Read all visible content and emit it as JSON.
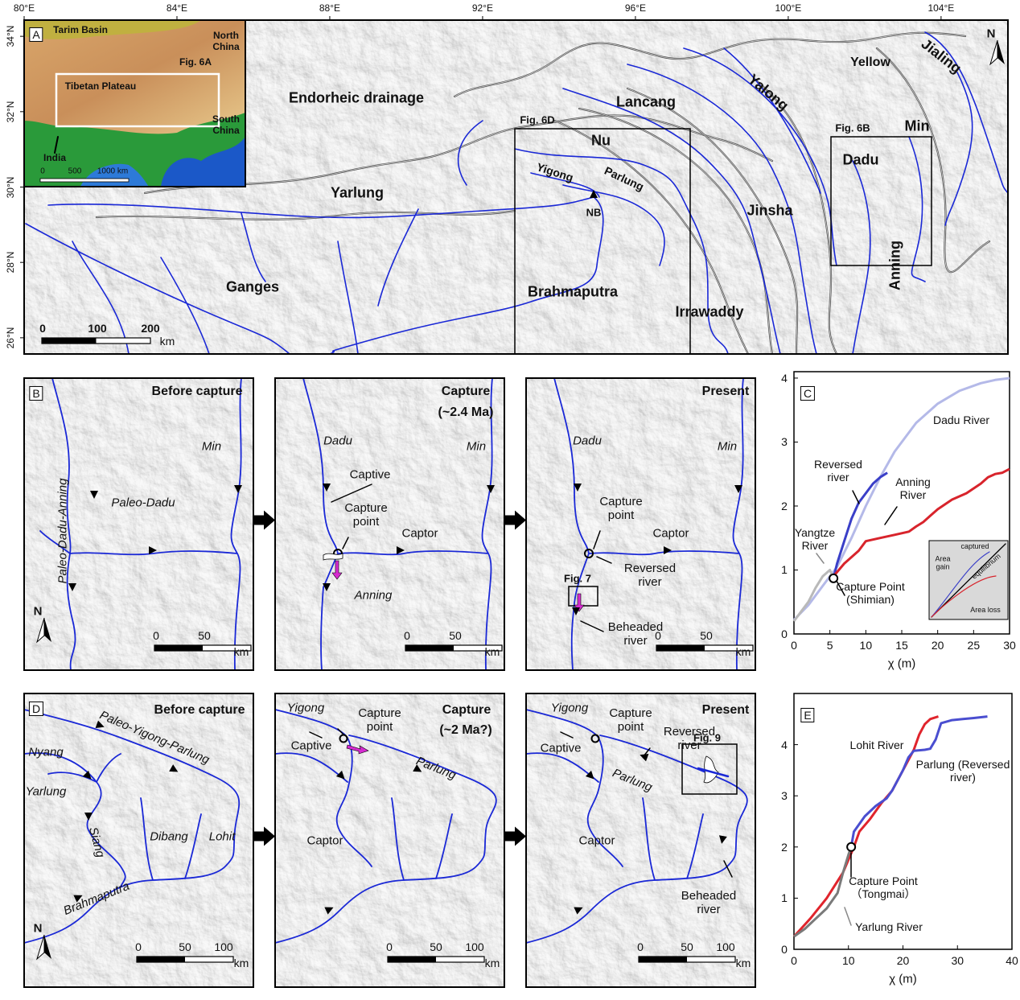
{
  "maps": {
    "A": {
      "letter": "A",
      "north": "N",
      "xlim": [
        80,
        105.75
      ],
      "xticks": [
        {
          "value": 80,
          "label": "80°E"
        },
        {
          "value": 84,
          "label": "84°E"
        },
        {
          "value": 88,
          "label": "88°E"
        },
        {
          "value": 92,
          "label": "92°E"
        },
        {
          "value": 96,
          "label": "96°E"
        },
        {
          "value": 100,
          "label": "100°E"
        },
        {
          "value": 104,
          "label": "104°E"
        }
      ],
      "ylim": [
        25.57,
        34.43
      ],
      "yticks": [
        {
          "value": 26,
          "label": "26°N"
        },
        {
          "value": 28,
          "label": "28°N"
        },
        {
          "value": 30,
          "label": "30°N"
        },
        {
          "value": 32,
          "label": "32°N"
        },
        {
          "value": 34,
          "label": "34°N"
        }
      ],
      "labels": [
        "Endorheic drainage",
        "Lancang",
        "Yellow",
        "Jialing",
        "Yalong",
        "Min",
        "Fig. 6D",
        "Nu",
        "Yigong",
        "Parlung",
        "Fig. 6B",
        "Dadu",
        "Yarlung",
        "NB",
        "Jinsha",
        "Anning",
        "Ganges",
        "Brahmaputra",
        "Irrawaddy"
      ],
      "scale": [
        "0",
        "100",
        "200",
        "km"
      ],
      "inset": {
        "labels": [
          "Tarim Basin",
          "North China",
          "Fig. 6A",
          "Tibetan Plateau",
          "South China",
          "India"
        ],
        "scale": [
          "0",
          "500",
          "1000 km"
        ]
      }
    },
    "B": {
      "letter": "B",
      "north": "N",
      "panels": [
        {
          "labels": [
            "Before capture",
            "Min",
            "Paleo-Dadu-Anning",
            "Paleo-Dadu"
          ],
          "scale": [
            "0",
            "50",
            "km"
          ]
        },
        {
          "labels": [
            "Capture",
            "(~2.4 Ma)",
            "Dadu",
            "Min",
            "Captive",
            "Capture point",
            "Captor",
            "Anning"
          ],
          "scale": [
            "0",
            "50",
            "km"
          ]
        },
        {
          "labels": [
            "Present",
            "Dadu",
            "Min",
            "Capture point",
            "Captor",
            "Reversed river",
            "Fig. 7",
            "Beheaded river"
          ],
          "scale": [
            "0",
            "50",
            "km"
          ]
        }
      ]
    },
    "D": {
      "letter": "D",
      "north": "N",
      "panels": [
        {
          "labels": [
            "Before capture",
            "Paleo-Yigong-Parlung",
            "Nyang",
            "Yarlung",
            "Siang",
            "Dibang",
            "Lohit",
            "Brahmaputra"
          ],
          "scale": [
            "0",
            "50",
            "100",
            "km"
          ]
        },
        {
          "labels": [
            "Capture",
            "(~2 Ma?)",
            "Yigong",
            "Capture point",
            "Captive",
            "Parlung",
            "Captor"
          ],
          "scale": [
            "0",
            "50",
            "100",
            "km"
          ]
        },
        {
          "labels": [
            "Present",
            "Yigong",
            "Capture point",
            "Captive",
            "Reversed river",
            "Parlung",
            "Fig. 9",
            "Captor",
            "Beheaded river"
          ],
          "scale": [
            "0",
            "50",
            "100",
            "km"
          ]
        }
      ]
    }
  },
  "chart_data": [
    {
      "type": "line",
      "letter": "C",
      "x_label": "χ (m)",
      "xlim": [
        0,
        30
      ],
      "xticks": [
        0,
        5,
        10,
        15,
        20,
        25,
        30
      ],
      "ylim": [
        0,
        4.1
      ],
      "yticks": [
        0,
        1,
        2,
        3,
        4
      ],
      "series": [
        {
          "name": "Dadu River",
          "color": "#b4b9e8",
          "x": [
            0,
            2,
            4,
            6,
            8,
            10,
            12,
            14,
            17,
            20,
            23,
            26,
            28,
            30
          ],
          "values": [
            0.22,
            0.45,
            0.75,
            1.05,
            1.5,
            2.0,
            2.45,
            2.85,
            3.3,
            3.6,
            3.8,
            3.92,
            3.97,
            4.0
          ]
        },
        {
          "name": "Reversed river",
          "color": "#3a3fc8",
          "x": [
            5.5,
            6,
            7,
            8,
            9,
            10,
            11,
            12,
            13
          ],
          "values": [
            0.87,
            1.1,
            1.45,
            1.8,
            2.05,
            2.2,
            2.35,
            2.45,
            2.52
          ]
        },
        {
          "name": "Anning River",
          "color": "#d8242c",
          "x": [
            5.5,
            7,
            9,
            10,
            12,
            14,
            16,
            17,
            18,
            19,
            20,
            22,
            24,
            26,
            27,
            28,
            29,
            30
          ],
          "values": [
            0.9,
            1.1,
            1.3,
            1.45,
            1.5,
            1.55,
            1.6,
            1.68,
            1.75,
            1.85,
            1.95,
            2.1,
            2.2,
            2.35,
            2.45,
            2.5,
            2.52,
            2.58
          ]
        },
        {
          "name": "Yangtze River",
          "color": "#b9b9b9",
          "x": [
            0,
            1,
            2,
            3,
            4,
            5,
            5.5
          ],
          "values": [
            0.2,
            0.35,
            0.5,
            0.72,
            0.9,
            1.0,
            0.87
          ]
        }
      ],
      "capture_point": {
        "x": 5.5,
        "y": 0.87,
        "label": "Capture Point (Shimian)"
      },
      "inset": {
        "labels": [
          "captured",
          "equilibrium",
          "Area gain",
          "Area loss"
        ]
      }
    },
    {
      "type": "line",
      "letter": "E",
      "x_label": "χ (m)",
      "xlim": [
        0,
        40
      ],
      "xticks": [
        0,
        10,
        20,
        30,
        40
      ],
      "ylim": [
        0,
        5
      ],
      "yticks": [
        0,
        1,
        2,
        3,
        4
      ],
      "series": [
        {
          "name": "Lohit River",
          "color": "#e0242c",
          "x": [
            0,
            3,
            6,
            9,
            11,
            12,
            14,
            16,
            18,
            20,
            21,
            22,
            23,
            24,
            25,
            26.5
          ],
          "values": [
            0.25,
            0.6,
            1.0,
            1.5,
            2.0,
            2.3,
            2.55,
            2.85,
            3.1,
            3.5,
            3.7,
            3.9,
            4.2,
            4.4,
            4.5,
            4.55
          ]
        },
        {
          "name": "Parlung (Reversed river)",
          "color": "#4a4ed0",
          "x": [
            10.5,
            11,
            13,
            15,
            17,
            18,
            20,
            21,
            22,
            24,
            25,
            26,
            27,
            29,
            31,
            33,
            35.5
          ],
          "values": [
            2.0,
            2.3,
            2.6,
            2.8,
            2.95,
            3.1,
            3.5,
            3.75,
            3.88,
            3.9,
            3.92,
            4.1,
            4.42,
            4.48,
            4.5,
            4.52,
            4.55
          ]
        },
        {
          "name": "Yarlung River",
          "color": "#7a7a7a",
          "x": [
            0,
            2,
            4,
            6,
            8,
            9,
            10,
            10.5
          ],
          "values": [
            0.25,
            0.4,
            0.6,
            0.8,
            1.1,
            1.5,
            1.85,
            2.0
          ]
        }
      ],
      "capture_point": {
        "x": 10.5,
        "y": 2.0,
        "label": "Capture Point（Tongmai）"
      }
    }
  ]
}
